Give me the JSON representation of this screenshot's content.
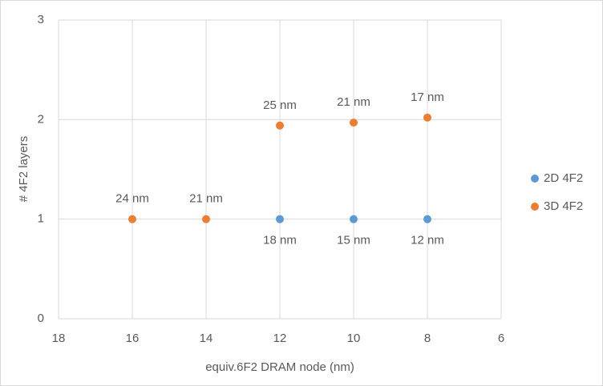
{
  "chart_data": {
    "type": "scatter",
    "x_label": "equiv.6F2 DRAM node (nm)",
    "y_label": "# 4F2 layers",
    "xlim": [
      18,
      6
    ],
    "xticks": [
      18,
      16,
      14,
      12,
      10,
      8,
      6
    ],
    "ylim": [
      0,
      3
    ],
    "yticks": [
      0,
      1,
      2,
      3
    ],
    "grid": true,
    "legend": "right",
    "series": [
      {
        "name": "2D 4F2",
        "color": "#5b9bd5",
        "label_position": "below",
        "x": [
          12,
          10,
          8
        ],
        "values": [
          1,
          1,
          1
        ],
        "point_labels": [
          "18 nm",
          "15 nm",
          "12 nm"
        ]
      },
      {
        "name": "3D 4F2",
        "color": "#ed7d31",
        "label_position": "above",
        "x": [
          16,
          14,
          12,
          10,
          8
        ],
        "values": [
          1,
          1,
          1.94,
          1.97,
          2.02
        ],
        "point_labels": [
          "24 nm",
          "21 nm",
          "25 nm",
          "21 nm",
          "17 nm"
        ]
      }
    ]
  }
}
